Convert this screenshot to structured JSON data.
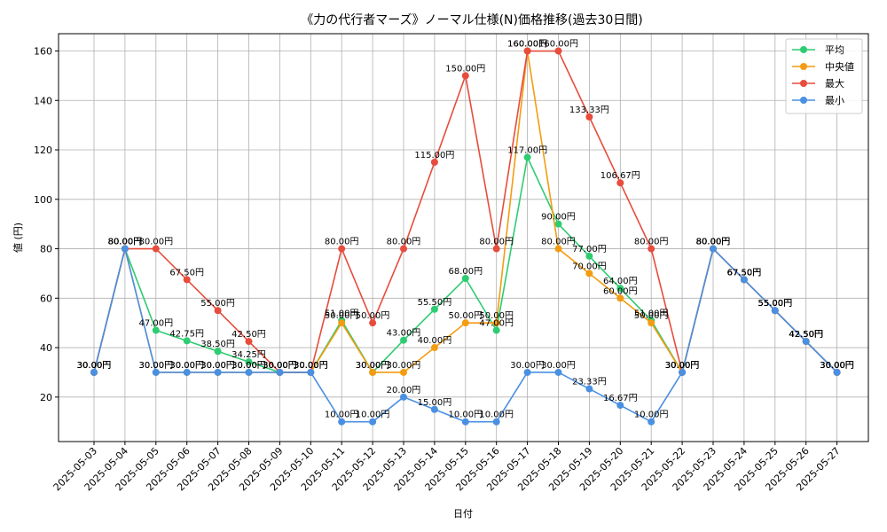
{
  "chart_data": {
    "type": "line",
    "title": "《力の代行者マーズ》ノーマル仕様(N)価格推移(過去30日間)",
    "xlabel": "日付",
    "ylabel": "値 (円)",
    "ylim": [
      2,
      167
    ],
    "yticks": [
      20,
      40,
      60,
      80,
      100,
      120,
      140,
      160
    ],
    "grid": true,
    "legend_position": "top-right",
    "value_suffix": "円",
    "categories": [
      "2025-05-03",
      "2025-05-04",
      "2025-05-05",
      "2025-05-06",
      "2025-05-07",
      "2025-05-08",
      "2025-05-09",
      "2025-05-10",
      "2025-05-11",
      "2025-05-12",
      "2025-05-13",
      "2025-05-14",
      "2025-05-15",
      "2025-05-16",
      "2025-05-17",
      "2025-05-18",
      "2025-05-19",
      "2025-05-20",
      "2025-05-21",
      "2025-05-22",
      "2025-05-23",
      "2025-05-24",
      "2025-05-25",
      "2025-05-26",
      "2025-05-27"
    ],
    "series": [
      {
        "name": "平均",
        "color": "#2ecc71",
        "values": [
          30,
          80,
          47,
          42.75,
          38.5,
          34.25,
          30,
          30,
          51,
          30,
          43,
          55.5,
          68,
          47,
          117,
          90,
          77,
          64,
          51,
          30,
          80,
          67.5,
          55,
          42.5,
          30
        ]
      },
      {
        "name": "中央値",
        "color": "#f39c12",
        "values": [
          30,
          80,
          30,
          30,
          30,
          30,
          30,
          30,
          50,
          30,
          30,
          40,
          50,
          50,
          160,
          80,
          70,
          60,
          50,
          30,
          80,
          67.5,
          55,
          42.5,
          30
        ]
      },
      {
        "name": "最大",
        "color": "#e74c3c",
        "values": [
          30,
          80,
          80,
          67.5,
          55,
          42.5,
          30,
          30,
          80,
          50,
          80,
          115,
          150,
          80,
          160,
          160,
          133.33,
          106.67,
          80,
          30,
          80,
          67.5,
          55,
          42.5,
          30
        ]
      },
      {
        "name": "最小",
        "color": "#4a90e2",
        "values": [
          30,
          80,
          30,
          30,
          30,
          30,
          30,
          30,
          10,
          10,
          20,
          15,
          10,
          10,
          30,
          30,
          23.33,
          16.67,
          10,
          30,
          80,
          67.5,
          55,
          42.5,
          30
        ]
      }
    ]
  }
}
